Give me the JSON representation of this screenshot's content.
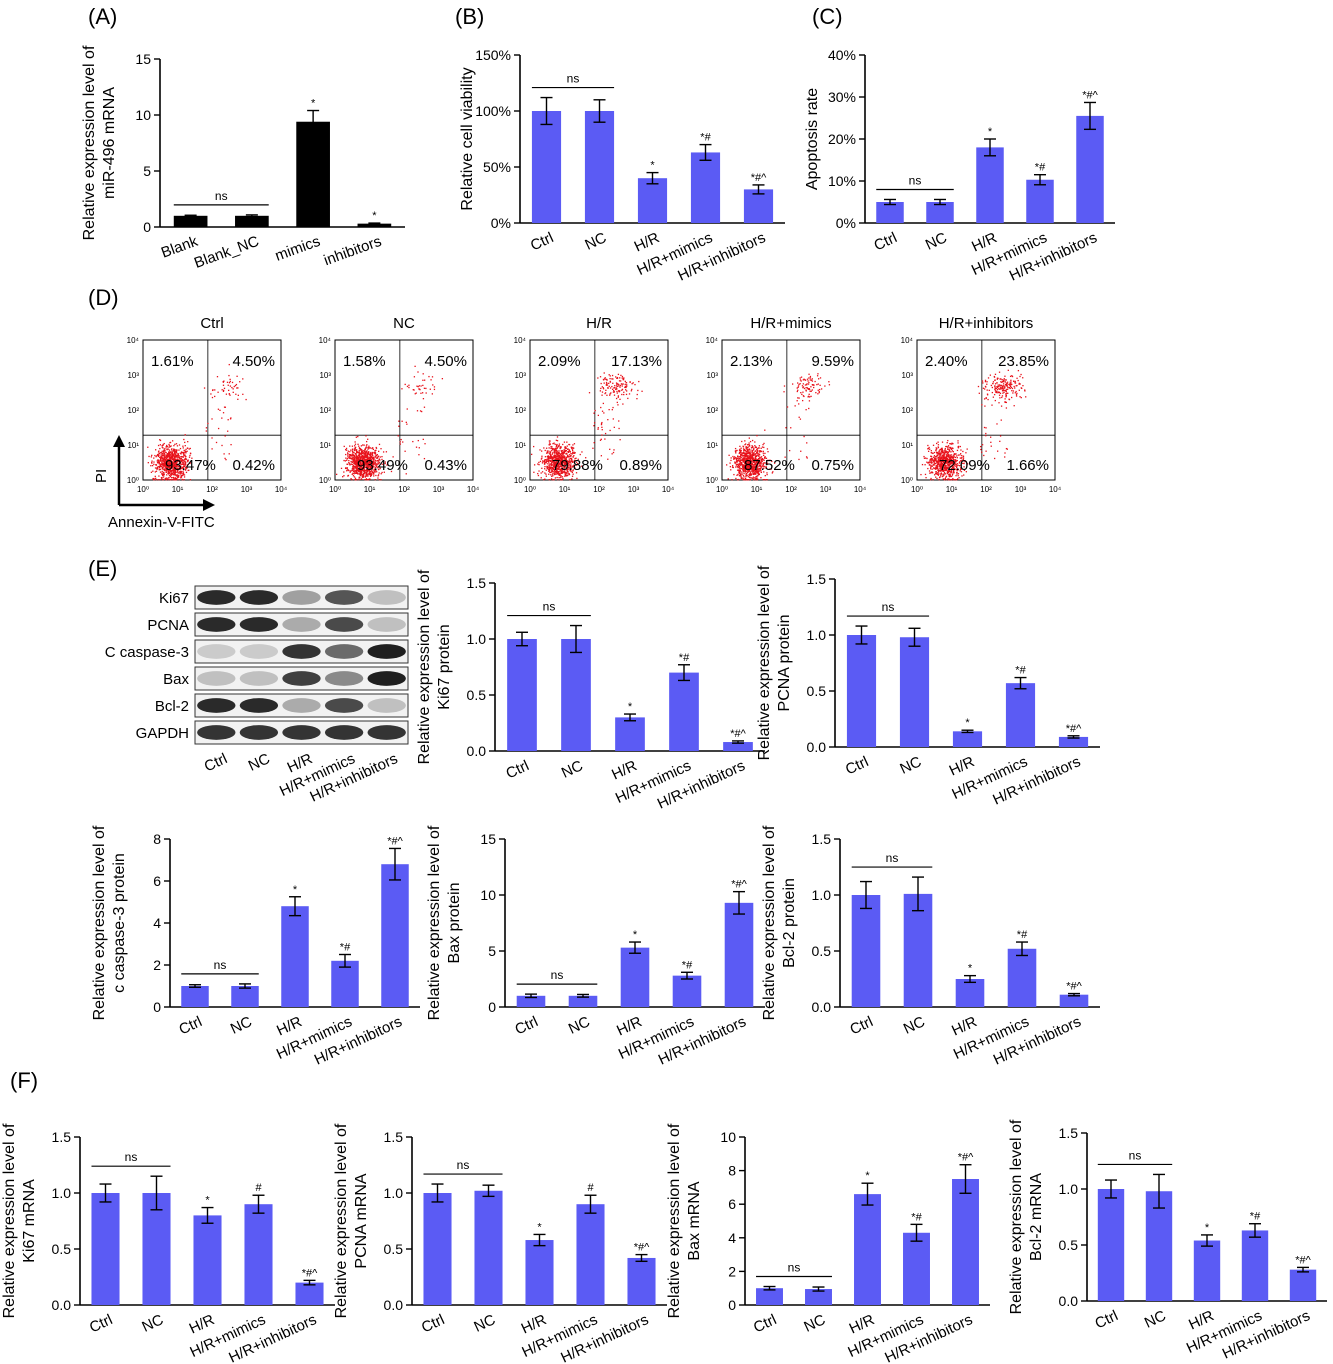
{
  "panel_letters": [
    "(A)",
    "(B)",
    "(C)",
    "(D)",
    "(E)",
    "(F)"
  ],
  "chart_data": [
    {
      "id": "A",
      "type": "bar",
      "categories": [
        "Blank",
        "Blank_NC",
        "mimics",
        "inhibitors"
      ],
      "values": [
        1.0,
        1.0,
        9.4,
        0.3
      ],
      "errors": [
        0.05,
        0.08,
        1.0,
        0.05
      ],
      "labels": [
        "",
        "",
        "*",
        "*"
      ],
      "ylabel": [
        "Relative expression level of",
        "miR-496 mRNA"
      ],
      "ylim": [
        0,
        15
      ],
      "yticks": [
        "0",
        "5",
        "10",
        "15"
      ],
      "ns": {
        "from": 0,
        "to": 1,
        "label": "ns"
      },
      "color": "#000000"
    },
    {
      "id": "B",
      "type": "bar",
      "categories": [
        "Ctrl",
        "NC",
        "H/R",
        "H/R+mimics",
        "H/R+inhibitors"
      ],
      "values": [
        100,
        100,
        40,
        63,
        30
      ],
      "errors": [
        12,
        10,
        5,
        7,
        4
      ],
      "labels": [
        "",
        "",
        "*",
        "*#",
        "*#^"
      ],
      "ylabel": [
        "Relative cell viability"
      ],
      "ylim": [
        0,
        150
      ],
      "yticks": [
        "0%",
        "50%",
        "100%",
        "150%"
      ],
      "ns": {
        "from": 0,
        "to": 1,
        "label": "ns"
      },
      "color": "#5B5BF4"
    },
    {
      "id": "C",
      "type": "bar",
      "categories": [
        "Ctrl",
        "NC",
        "H/R",
        "H/R+mimics",
        "H/R+inhibitors"
      ],
      "values": [
        5,
        5,
        18,
        10.3,
        25.5
      ],
      "errors": [
        0.6,
        0.6,
        2,
        1.2,
        3.2
      ],
      "labels": [
        "",
        "",
        "*",
        "*#",
        "*#^"
      ],
      "ylabel": [
        "Apoptosis rate"
      ],
      "ylim": [
        0,
        40
      ],
      "yticks": [
        "0%",
        "10%",
        "20%",
        "30%",
        "40%"
      ],
      "ns": {
        "from": 0,
        "to": 1,
        "label": "ns"
      },
      "color": "#5B5BF4"
    },
    {
      "id": "E-Ki67",
      "type": "bar",
      "categories": [
        "Ctrl",
        "NC",
        "H/R",
        "H/R+mimics",
        "H/R+inhibitors"
      ],
      "values": [
        1.0,
        1.0,
        0.3,
        0.7,
        0.08
      ],
      "errors": [
        0.06,
        0.12,
        0.03,
        0.07,
        0.01
      ],
      "labels": [
        "",
        "",
        "*",
        "*#",
        "*#^"
      ],
      "ylabel": [
        "Relative expression level of",
        "Ki67 protein"
      ],
      "ylim": [
        0,
        1.5
      ],
      "yticks": [
        "0.0",
        "0.5",
        "1.0",
        "1.5"
      ],
      "ns": {
        "from": 0,
        "to": 1,
        "label": "ns"
      },
      "color": "#5B5BF4"
    },
    {
      "id": "E-PCNA",
      "type": "bar",
      "categories": [
        "Ctrl",
        "NC",
        "H/R",
        "H/R+mimics",
        "H/R+inhibitors"
      ],
      "values": [
        1.0,
        0.98,
        0.14,
        0.57,
        0.09
      ],
      "errors": [
        0.08,
        0.08,
        0.01,
        0.05,
        0.01
      ],
      "labels": [
        "",
        "",
        "*",
        "*#",
        "*#^"
      ],
      "ylabel": [
        "Relative expression level of",
        "PCNA protein"
      ],
      "ylim": [
        0,
        1.5
      ],
      "yticks": [
        "0.0",
        "0.5",
        "1.0",
        "1.5"
      ],
      "ns": {
        "from": 0,
        "to": 1,
        "label": "ns"
      },
      "color": "#5B5BF4"
    },
    {
      "id": "E-caspase",
      "type": "bar",
      "categories": [
        "Ctrl",
        "NC",
        "H/R",
        "H/R+mimics",
        "H/R+inhibitors"
      ],
      "values": [
        1.0,
        1.0,
        4.8,
        2.2,
        6.8
      ],
      "errors": [
        0.06,
        0.1,
        0.45,
        0.3,
        0.75
      ],
      "labels": [
        "",
        "",
        "*",
        "*#",
        "*#^"
      ],
      "ylabel": [
        "Relative expression level of",
        "c caspase-3 protein"
      ],
      "ylim": [
        0,
        8
      ],
      "yticks": [
        "0",
        "2",
        "4",
        "6",
        "8"
      ],
      "ns": {
        "from": 0,
        "to": 1,
        "label": "ns"
      },
      "color": "#5B5BF4"
    },
    {
      "id": "E-Bax",
      "type": "bar",
      "categories": [
        "Ctrl",
        "NC",
        "H/R",
        "H/R+mimics",
        "H/R+inhibitors"
      ],
      "values": [
        1.0,
        1.0,
        5.3,
        2.8,
        9.3
      ],
      "errors": [
        0.15,
        0.12,
        0.5,
        0.3,
        1.0
      ],
      "labels": [
        "",
        "",
        "*",
        "*#",
        "*#^"
      ],
      "ylabel": [
        "Relative expression level of",
        "Bax protein"
      ],
      "ylim": [
        0,
        15
      ],
      "yticks": [
        "0",
        "5",
        "10",
        "15"
      ],
      "ns": {
        "from": 0,
        "to": 1,
        "label": "ns"
      },
      "color": "#5B5BF4"
    },
    {
      "id": "E-Bcl2",
      "type": "bar",
      "categories": [
        "Ctrl",
        "NC",
        "H/R",
        "H/R+mimics",
        "H/R+inhibitors"
      ],
      "values": [
        1.0,
        1.01,
        0.25,
        0.52,
        0.11
      ],
      "errors": [
        0.12,
        0.15,
        0.03,
        0.06,
        0.01
      ],
      "labels": [
        "",
        "",
        "*",
        "*#",
        "*#^"
      ],
      "ylabel": [
        "Relative expression level of",
        "Bcl-2 protein"
      ],
      "ylim": [
        0,
        1.5
      ],
      "yticks": [
        "0.0",
        "0.5",
        "1.0",
        "1.5"
      ],
      "ns": {
        "from": 0,
        "to": 1,
        "label": "ns"
      },
      "color": "#5B5BF4"
    },
    {
      "id": "F-Ki67",
      "type": "bar",
      "categories": [
        "Ctrl",
        "NC",
        "H/R",
        "H/R+mimics",
        "H/R+inhibitors"
      ],
      "values": [
        1.0,
        1.0,
        0.8,
        0.9,
        0.2
      ],
      "errors": [
        0.08,
        0.15,
        0.07,
        0.08,
        0.02
      ],
      "labels": [
        "",
        "",
        "*",
        "#",
        "*#^"
      ],
      "ylabel": [
        "Relative expression level of",
        "Ki67 mRNA"
      ],
      "ylim": [
        0,
        1.5
      ],
      "yticks": [
        "0.0",
        "0.5",
        "1.0",
        "1.5"
      ],
      "ns": {
        "from": 0,
        "to": 1,
        "label": "ns"
      },
      "color": "#5B5BF4"
    },
    {
      "id": "F-PCNA",
      "type": "bar",
      "categories": [
        "Ctrl",
        "NC",
        "H/R",
        "H/R+mimics",
        "H/R+inhibitors"
      ],
      "values": [
        1.0,
        1.02,
        0.58,
        0.9,
        0.42
      ],
      "errors": [
        0.08,
        0.05,
        0.05,
        0.08,
        0.03
      ],
      "labels": [
        "",
        "",
        "*",
        "#",
        "*#^"
      ],
      "ylabel": [
        "Relative expression level of",
        "PCNA mRNA"
      ],
      "ylim": [
        0,
        1.5
      ],
      "yticks": [
        "0.0",
        "0.5",
        "1.0",
        "1.5"
      ],
      "ns": {
        "from": 0,
        "to": 1,
        "label": "ns"
      },
      "color": "#5B5BF4"
    },
    {
      "id": "F-Bax",
      "type": "bar",
      "categories": [
        "Ctrl",
        "NC",
        "H/R",
        "H/R+mimics",
        "H/R+inhibitors"
      ],
      "values": [
        1.0,
        0.95,
        6.6,
        4.3,
        7.5
      ],
      "errors": [
        0.1,
        0.12,
        0.65,
        0.5,
        0.85
      ],
      "labels": [
        "",
        "",
        "*",
        "*#",
        "*#^"
      ],
      "ylabel": [
        "Relative expression level of",
        "Bax mRNA"
      ],
      "ylim": [
        0,
        10
      ],
      "yticks": [
        "0",
        "2",
        "4",
        "6",
        "8",
        "10"
      ],
      "ns": {
        "from": 0,
        "to": 1,
        "label": "ns"
      },
      "color": "#5B5BF4"
    },
    {
      "id": "F-Bcl2",
      "type": "bar",
      "categories": [
        "Ctrl",
        "NC",
        "H/R",
        "H/R+mimics",
        "H/R+inhibitors"
      ],
      "values": [
        1.0,
        0.98,
        0.54,
        0.63,
        0.28
      ],
      "errors": [
        0.08,
        0.15,
        0.05,
        0.06,
        0.02
      ],
      "labels": [
        "",
        "",
        "*",
        "*#",
        "*#^"
      ],
      "ylabel": [
        "Relative expression level of",
        "Bcl-2 mRNA"
      ],
      "ylim": [
        0,
        1.5
      ],
      "yticks": [
        "0.0",
        "0.5",
        "1.0",
        "1.5"
      ],
      "ns": {
        "from": 0,
        "to": 1,
        "label": "ns"
      },
      "color": "#5B5BF4"
    }
  ],
  "flow": {
    "type": "scatter",
    "panels": [
      {
        "title": "Ctrl",
        "ul": "1.61%",
        "ur": "4.50%",
        "ll": "93.47%",
        "lr": "0.42%"
      },
      {
        "title": "NC",
        "ul": "1.58%",
        "ur": "4.50%",
        "ll": "93.49%",
        "lr": "0.43%"
      },
      {
        "title": "H/R",
        "ul": "2.09%",
        "ur": "17.13%",
        "ll": "79.88%",
        "lr": "0.89%"
      },
      {
        "title": "H/R+mimics",
        "ul": "2.13%",
        "ur": "9.59%",
        "ll": "87.52%",
        "lr": "0.75%"
      },
      {
        "title": "H/R+inhibitors",
        "ul": "2.40%",
        "ur": "23.85%",
        "ll": "72.09%",
        "lr": "1.66%"
      }
    ],
    "xticks": [
      "10⁰",
      "10¹",
      "10²",
      "10³",
      "10⁴"
    ],
    "yticks": [
      "10⁰",
      "10¹",
      "10²",
      "10³",
      "10⁴"
    ],
    "xlabel": "Annexin-V-FITC",
    "ylabel": "PI",
    "dot_color": "#E8121B"
  },
  "western_blot": {
    "bands": [
      "Ki67",
      "PCNA",
      "C caspase-3",
      "Bax",
      "Bcl-2",
      "GAPDH"
    ],
    "lanes": [
      "Ctrl",
      "NC",
      "H/R",
      "H/R+mimics",
      "H/R+inhibitors"
    ],
    "intensity": [
      [
        0.9,
        0.9,
        0.35,
        0.7,
        0.2
      ],
      [
        0.9,
        0.9,
        0.3,
        0.75,
        0.2
      ],
      [
        0.15,
        0.15,
        0.85,
        0.6,
        0.95
      ],
      [
        0.2,
        0.2,
        0.8,
        0.45,
        0.95
      ],
      [
        0.9,
        0.9,
        0.3,
        0.75,
        0.2
      ],
      [
        0.85,
        0.85,
        0.85,
        0.85,
        0.85
      ]
    ]
  }
}
